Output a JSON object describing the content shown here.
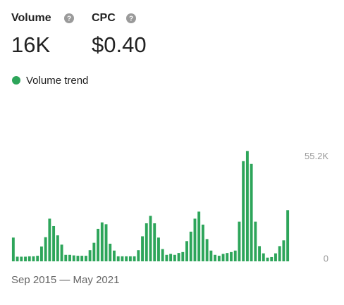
{
  "metrics": [
    {
      "label": "Volume",
      "value": "16K"
    },
    {
      "label": "CPC",
      "value": "$0.40"
    }
  ],
  "chart_data": {
    "type": "bar",
    "series": [
      {
        "name": "Volume trend",
        "color": "#2da55a",
        "values": [
          12800,
          2500,
          2500,
          2500,
          2700,
          2700,
          3000,
          8000,
          13000,
          23000,
          19000,
          14000,
          9000,
          3500,
          3500,
          3200,
          3000,
          3000,
          3000,
          6000,
          10000,
          17500,
          21000,
          20000,
          9500,
          5800,
          2700,
          2700,
          2700,
          2700,
          2700,
          6000,
          13500,
          20500,
          24500,
          20500,
          12800,
          6600,
          3500,
          4000,
          3500,
          4500,
          5000,
          10900,
          16000,
          23000,
          26800,
          19800,
          12000,
          5800,
          3500,
          3000,
          4000,
          4500,
          5000,
          5800,
          21400,
          54000,
          59500,
          52500,
          21400,
          8200,
          4300,
          2000,
          2300,
          4300,
          8200,
          11300,
          27600
        ]
      }
    ],
    "ylim": [
      0,
      60000
    ],
    "yticks": [
      0,
      {
        "value": 55200,
        "label": "55.2K"
      }
    ],
    "x_range_label": "Sep 2015 — May 2021"
  }
}
